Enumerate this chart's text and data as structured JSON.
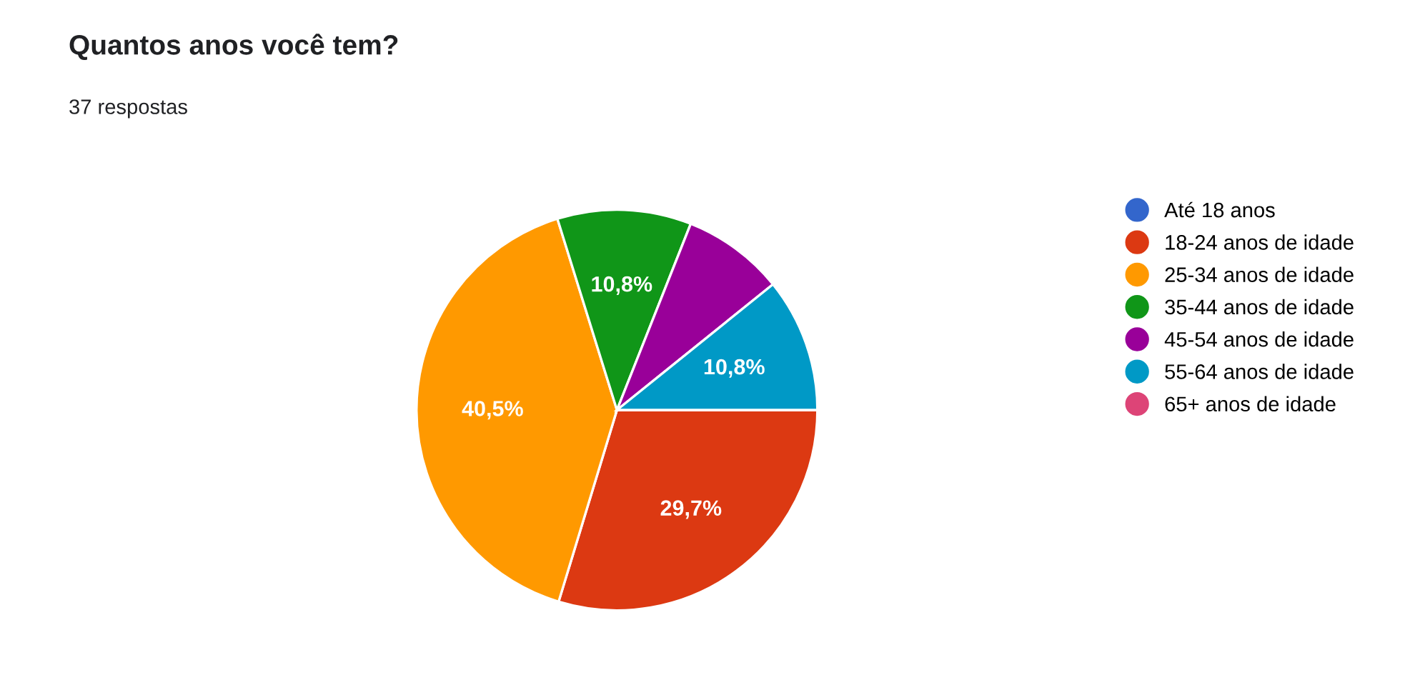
{
  "chart_data": {
    "type": "pie",
    "title": "Quantos anos você tem?",
    "subtitle": "37 respostas",
    "categories": [
      "Até 18 anos",
      "18-24 anos de idade",
      "25-34 anos de idade",
      "35-44 anos de idade",
      "45-54 anos de idade",
      "55-64 anos de idade",
      "65+ anos de idade"
    ],
    "values": [
      0,
      29.7,
      40.5,
      10.8,
      8.2,
      10.8,
      0
    ],
    "value_labels": [
      null,
      "29,7%",
      "40,5%",
      "10,8%",
      null,
      "10,8%",
      null
    ],
    "colors": [
      "#3366cc",
      "#dc3912",
      "#ff9900",
      "#109618",
      "#990099",
      "#0099c6",
      "#dd4477"
    ],
    "legend": "right"
  }
}
